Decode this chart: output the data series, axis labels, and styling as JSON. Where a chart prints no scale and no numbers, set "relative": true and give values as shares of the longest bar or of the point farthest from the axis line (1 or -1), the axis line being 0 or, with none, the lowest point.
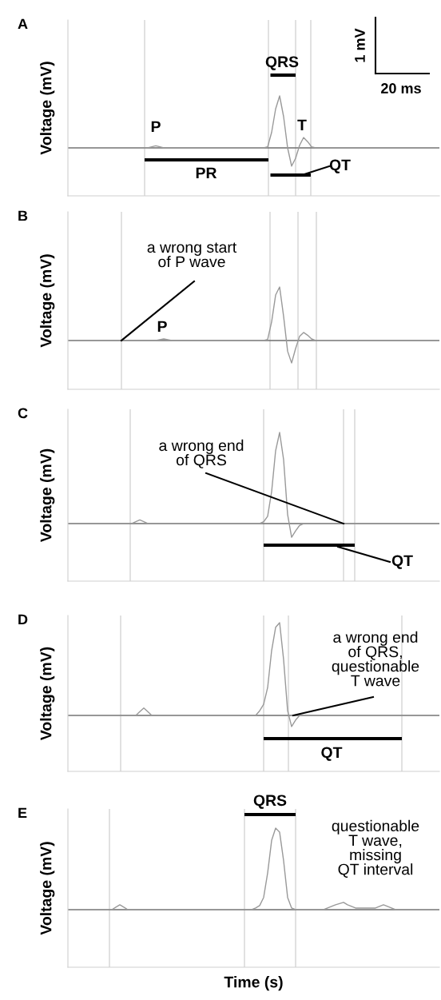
{
  "chart_data": [
    {
      "type": "line",
      "title": "A",
      "ylabel": "Voltage (mV)",
      "relative": true,
      "tick_labels": false,
      "categories": [
        null,
        null,
        null,
        null,
        null,
        null,
        null,
        null,
        null,
        null,
        null,
        null,
        null,
        null,
        null,
        null,
        null,
        null,
        null,
        null,
        null,
        null,
        null,
        null,
        null,
        null,
        null,
        null,
        null,
        null,
        null,
        null,
        null,
        null,
        null,
        null,
        null,
        null,
        null,
        null,
        null,
        null,
        null,
        null,
        null,
        null,
        null,
        null,
        null,
        null,
        null,
        null,
        null,
        null,
        null,
        null,
        null,
        null,
        null,
        null,
        null,
        null,
        null,
        null,
        null,
        null,
        null,
        null,
        null,
        null,
        null,
        null,
        null,
        null,
        null,
        null,
        null,
        null,
        null,
        null,
        null,
        null,
        null,
        null,
        null,
        null,
        null,
        null,
        null,
        null,
        null,
        null,
        null,
        null
      ],
      "series": [
        {
          "color": "#999999",
          "values": [
            0,
            0,
            0,
            0,
            0,
            0,
            0,
            0,
            0,
            0,
            0,
            0,
            0,
            0,
            0,
            0,
            0,
            0,
            0,
            0,
            0,
            0.02,
            0.04,
            0.02,
            0,
            0,
            0,
            0,
            0,
            0,
            0,
            0,
            0,
            0,
            0,
            0,
            0,
            0,
            0,
            0,
            0,
            0,
            0,
            0,
            0,
            0,
            0,
            0,
            0,
            0,
            0.02,
            0.3,
            0.75,
            1,
            0.6,
            0,
            -0.35,
            -0.2,
            0.05,
            0.2,
            0.12,
            0.02,
            0,
            0,
            0,
            0,
            0,
            0,
            0,
            0,
            0,
            0,
            0,
            0,
            0,
            0,
            0,
            0,
            0,
            0,
            0,
            0,
            0,
            0,
            0,
            0,
            0,
            0,
            0,
            0,
            0,
            0,
            0,
            0
          ]
        }
      ],
      "ref_lines": [
        {
          "axis": "y",
          "value": 0,
          "color": "#6e6e6e"
        }
      ],
      "annotations": [
        "QRS",
        "PR",
        "QT",
        "P",
        "T",
        "1 mV",
        "20 ms"
      ]
    },
    {
      "type": "line",
      "title": "B",
      "ylabel": "Voltage (mV)",
      "relative": true,
      "tick_labels": false,
      "categories": [
        null,
        null,
        null,
        null,
        null,
        null,
        null,
        null,
        null,
        null,
        null,
        null,
        null,
        null,
        null,
        null,
        null,
        null,
        null,
        null,
        null,
        null,
        null,
        null,
        null,
        null,
        null,
        null,
        null,
        null,
        null,
        null,
        null,
        null,
        null,
        null,
        null,
        null,
        null,
        null,
        null,
        null,
        null,
        null,
        null,
        null,
        null,
        null,
        null,
        null,
        null,
        null,
        null,
        null,
        null,
        null,
        null,
        null,
        null,
        null,
        null,
        null,
        null,
        null,
        null,
        null,
        null,
        null,
        null,
        null,
        null,
        null,
        null,
        null,
        null,
        null,
        null,
        null,
        null,
        null,
        null,
        null,
        null,
        null,
        null,
        null,
        null,
        null,
        null,
        null,
        null,
        null,
        null,
        null
      ],
      "series": [
        {
          "color": "#999999",
          "values": [
            0,
            0,
            0,
            0,
            0,
            0,
            0,
            0,
            0,
            0,
            0,
            0,
            0,
            0,
            0,
            0,
            0,
            0,
            0,
            0,
            0,
            0,
            0,
            0.015,
            0.03,
            0.015,
            0,
            0,
            0,
            0,
            0,
            0,
            0,
            0,
            0,
            0,
            0,
            0,
            0,
            0,
            0,
            0,
            0,
            0,
            0,
            0,
            0,
            0,
            0,
            0,
            0.02,
            0.35,
            0.85,
            1,
            0.45,
            -0.2,
            -0.42,
            -0.15,
            0.08,
            0.15,
            0.1,
            0.03,
            0,
            0,
            0,
            0,
            0,
            0,
            0,
            0,
            0,
            0,
            0,
            0,
            0,
            0,
            0,
            0,
            0,
            0,
            0,
            0,
            0,
            0,
            0,
            0,
            0,
            0,
            0,
            0,
            0,
            0,
            0,
            0
          ]
        }
      ],
      "ref_lines": [
        {
          "axis": "y",
          "value": 0,
          "color": "#6e6e6e"
        }
      ],
      "annotations": [
        "a wrong start\nof P wave",
        "P"
      ]
    },
    {
      "type": "line",
      "title": "C",
      "ylabel": "Voltage (mV)",
      "relative": true,
      "tick_labels": false,
      "categories": [
        null,
        null,
        null,
        null,
        null,
        null,
        null,
        null,
        null,
        null,
        null,
        null,
        null,
        null,
        null,
        null,
        null,
        null,
        null,
        null,
        null,
        null,
        null,
        null,
        null,
        null,
        null,
        null,
        null,
        null,
        null,
        null,
        null,
        null,
        null,
        null,
        null,
        null,
        null,
        null,
        null,
        null,
        null,
        null,
        null,
        null,
        null,
        null,
        null,
        null,
        null,
        null,
        null,
        null,
        null,
        null,
        null,
        null,
        null,
        null,
        null,
        null,
        null,
        null,
        null,
        null,
        null,
        null,
        null,
        null,
        null,
        null,
        null,
        null,
        null,
        null,
        null,
        null,
        null,
        null,
        null,
        null,
        null,
        null,
        null,
        null,
        null,
        null,
        null,
        null,
        null,
        null,
        null,
        null
      ],
      "series": [
        {
          "color": "#999999",
          "values": [
            0,
            0,
            0,
            0,
            0,
            0,
            0,
            0,
            0,
            0,
            0,
            0,
            0,
            0,
            0,
            0,
            0,
            0.02,
            0.04,
            0.02,
            0,
            0,
            0,
            0,
            0,
            0,
            0,
            0,
            0,
            0,
            0,
            0,
            0,
            0,
            0,
            0,
            0,
            0,
            0,
            0,
            0,
            0,
            0,
            0,
            0,
            0,
            0,
            0,
            0,
            0.02,
            0.08,
            0.35,
            0.8,
            1,
            0.7,
            0.1,
            -0.15,
            -0.08,
            -0.02,
            0,
            0,
            0,
            0,
            0,
            0,
            0,
            0,
            0,
            0,
            0,
            0,
            0,
            0,
            0,
            0,
            0,
            0,
            0,
            0,
            0,
            0,
            0,
            0,
            0,
            0,
            0,
            0,
            0,
            0,
            0,
            0,
            0,
            0,
            0
          ]
        }
      ],
      "ref_lines": [
        {
          "axis": "y",
          "value": 0,
          "color": "#6e6e6e"
        }
      ],
      "annotations": [
        "a wrong end\nof QRS",
        "QT"
      ]
    },
    {
      "type": "line",
      "title": "D",
      "ylabel": "Voltage (mV)",
      "relative": true,
      "tick_labels": false,
      "categories": [
        null,
        null,
        null,
        null,
        null,
        null,
        null,
        null,
        null,
        null,
        null,
        null,
        null,
        null,
        null,
        null,
        null,
        null,
        null,
        null,
        null,
        null,
        null,
        null,
        null,
        null,
        null,
        null,
        null,
        null,
        null,
        null,
        null,
        null,
        null,
        null,
        null,
        null,
        null,
        null,
        null,
        null,
        null,
        null,
        null,
        null,
        null,
        null,
        null,
        null,
        null,
        null,
        null,
        null,
        null,
        null,
        null,
        null,
        null,
        null,
        null,
        null,
        null,
        null,
        null,
        null,
        null,
        null,
        null,
        null,
        null,
        null,
        null,
        null,
        null,
        null,
        null,
        null,
        null,
        null,
        null,
        null,
        null,
        null,
        null,
        null,
        null,
        null,
        null,
        null,
        null,
        null,
        null,
        null
      ],
      "series": [
        {
          "color": "#999999",
          "values": [
            0,
            0,
            0,
            0,
            0,
            0,
            0,
            0,
            0,
            0,
            0,
            0,
            0,
            0,
            0,
            0,
            0,
            0,
            0.04,
            0.08,
            0.04,
            0,
            0,
            0,
            0,
            0,
            0,
            0,
            0,
            0,
            0,
            0,
            0,
            0,
            0,
            0,
            0,
            0,
            0,
            0,
            0,
            0,
            0,
            0,
            0,
            0,
            0,
            0,
            0.05,
            0.12,
            0.3,
            0.7,
            0.95,
            1,
            0.6,
            0.05,
            -0.12,
            -0.05,
            0,
            0,
            0,
            0,
            0,
            0,
            0,
            0,
            0,
            0,
            0,
            0,
            0,
            0,
            0,
            0,
            0,
            0,
            0,
            0,
            0,
            0,
            0,
            0,
            0,
            0,
            0,
            0,
            0,
            0,
            0,
            0,
            0,
            0,
            0,
            0
          ]
        }
      ],
      "ref_lines": [
        {
          "axis": "y",
          "value": 0,
          "color": "#6e6e6e"
        }
      ],
      "annotations": [
        "a wrong end\nof QRS,\nquestionable\nT wave",
        "QT"
      ]
    },
    {
      "type": "line",
      "title": "E",
      "ylabel": "Voltage (mV)",
      "xlabel": "Time (s)",
      "relative": true,
      "tick_labels": false,
      "categories": [
        null,
        null,
        null,
        null,
        null,
        null,
        null,
        null,
        null,
        null,
        null,
        null,
        null,
        null,
        null,
        null,
        null,
        null,
        null,
        null,
        null,
        null,
        null,
        null,
        null,
        null,
        null,
        null,
        null,
        null,
        null,
        null,
        null,
        null,
        null,
        null,
        null,
        null,
        null,
        null,
        null,
        null,
        null,
        null,
        null,
        null,
        null,
        null,
        null,
        null,
        null,
        null,
        null,
        null,
        null,
        null,
        null,
        null,
        null,
        null,
        null,
        null,
        null,
        null,
        null,
        null,
        null,
        null,
        null,
        null,
        null,
        null,
        null,
        null,
        null,
        null,
        null,
        null,
        null,
        null,
        null,
        null,
        null,
        null,
        null,
        null,
        null,
        null,
        null,
        null,
        null,
        null,
        null,
        null
      ],
      "series": [
        {
          "color": "#999999",
          "values": [
            0,
            0,
            0,
            0,
            0,
            0,
            0,
            0,
            0,
            0,
            0,
            0,
            0.03,
            0.06,
            0.03,
            0,
            0,
            0,
            0,
            0,
            0,
            0,
            0,
            0,
            0,
            0,
            0,
            0,
            0,
            0,
            0,
            0,
            0,
            0,
            0,
            0,
            0,
            0,
            0,
            0,
            0,
            0,
            0,
            0,
            0,
            0,
            0,
            0.02,
            0.05,
            0.15,
            0.45,
            0.85,
            1,
            0.95,
            0.6,
            0.15,
            0.02,
            0,
            0,
            0,
            0,
            0,
            0,
            0,
            0,
            0.02,
            0.04,
            0.06,
            0.075,
            0.09,
            0.06,
            0.04,
            0.02,
            0.02,
            0.02,
            0.02,
            0.02,
            0.02,
            0.04,
            0.06,
            0.04,
            0.02,
            0,
            0,
            0,
            0,
            0,
            0,
            0,
            0,
            0,
            0,
            0,
            0
          ]
        }
      ],
      "ref_lines": [
        {
          "axis": "y",
          "value": 0,
          "color": "#6e6e6e"
        }
      ],
      "annotations": [
        "QRS",
        "questionable\nT wave,\nmissing\nQT interval"
      ]
    }
  ]
}
